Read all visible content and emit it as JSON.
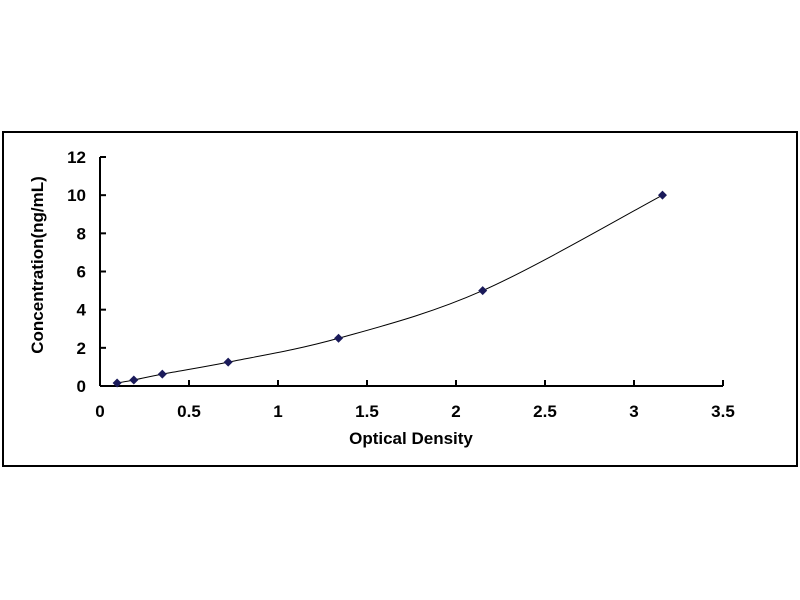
{
  "chart_data": {
    "type": "scatter",
    "xlabel": "Optical Density",
    "ylabel": "Concentration(ng/mL)",
    "xlim": [
      0,
      3.5
    ],
    "ylim": [
      0,
      12
    ],
    "xticks": [
      "0",
      "0.5",
      "1",
      "1.5",
      "2",
      "2.5",
      "3",
      "3.5"
    ],
    "yticks": [
      "0",
      "2",
      "4",
      "6",
      "8",
      "10",
      "12"
    ],
    "grid": false,
    "trendline": "smooth curve",
    "marker": "diamond",
    "marker_color": "#1a1a5a",
    "series": [
      {
        "x": [
          0.096,
          0.19,
          0.35,
          0.72,
          1.34,
          2.15,
          3.16
        ],
        "y": [
          0.156,
          0.312,
          0.625,
          1.25,
          2.5,
          5,
          10
        ]
      }
    ]
  }
}
